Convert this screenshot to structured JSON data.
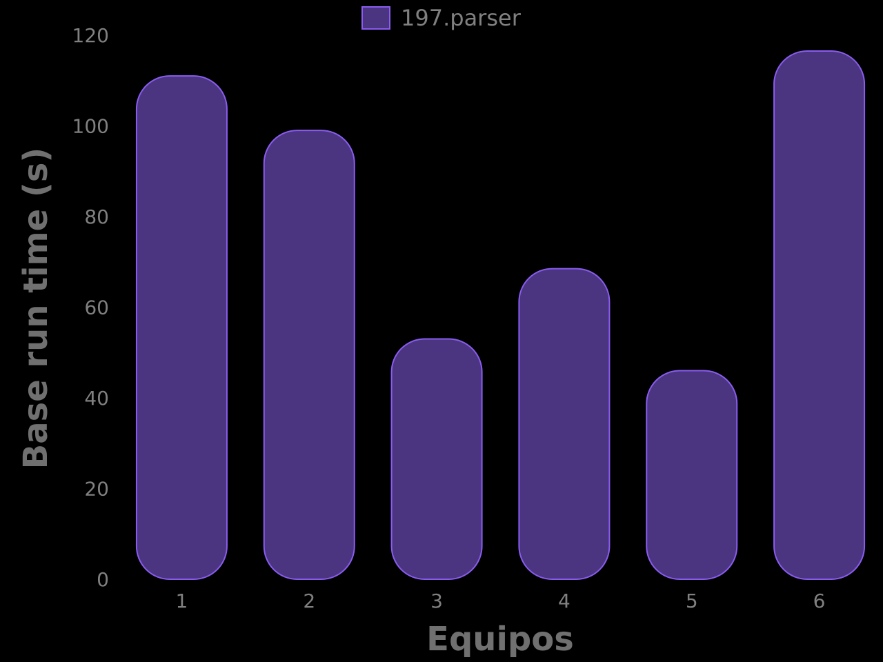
{
  "chart_data": {
    "type": "bar",
    "categories": [
      "1",
      "2",
      "3",
      "4",
      "5",
      "6"
    ],
    "series": [
      {
        "name": "197.parser",
        "values": [
          111,
          99,
          53,
          68.5,
          46,
          116.5
        ]
      }
    ],
    "xlabel": "Equipos",
    "ylabel": "Base run time (s)",
    "ylim": [
      0,
      120
    ],
    "yticks": [
      0,
      20,
      40,
      60,
      80,
      100,
      120
    ],
    "legend": "top-center",
    "grid": false,
    "colors": {
      "bar_fill": "#4b3480",
      "bar_stroke": "#8a5cf0",
      "background": "#000000",
      "text": "#808080"
    }
  }
}
